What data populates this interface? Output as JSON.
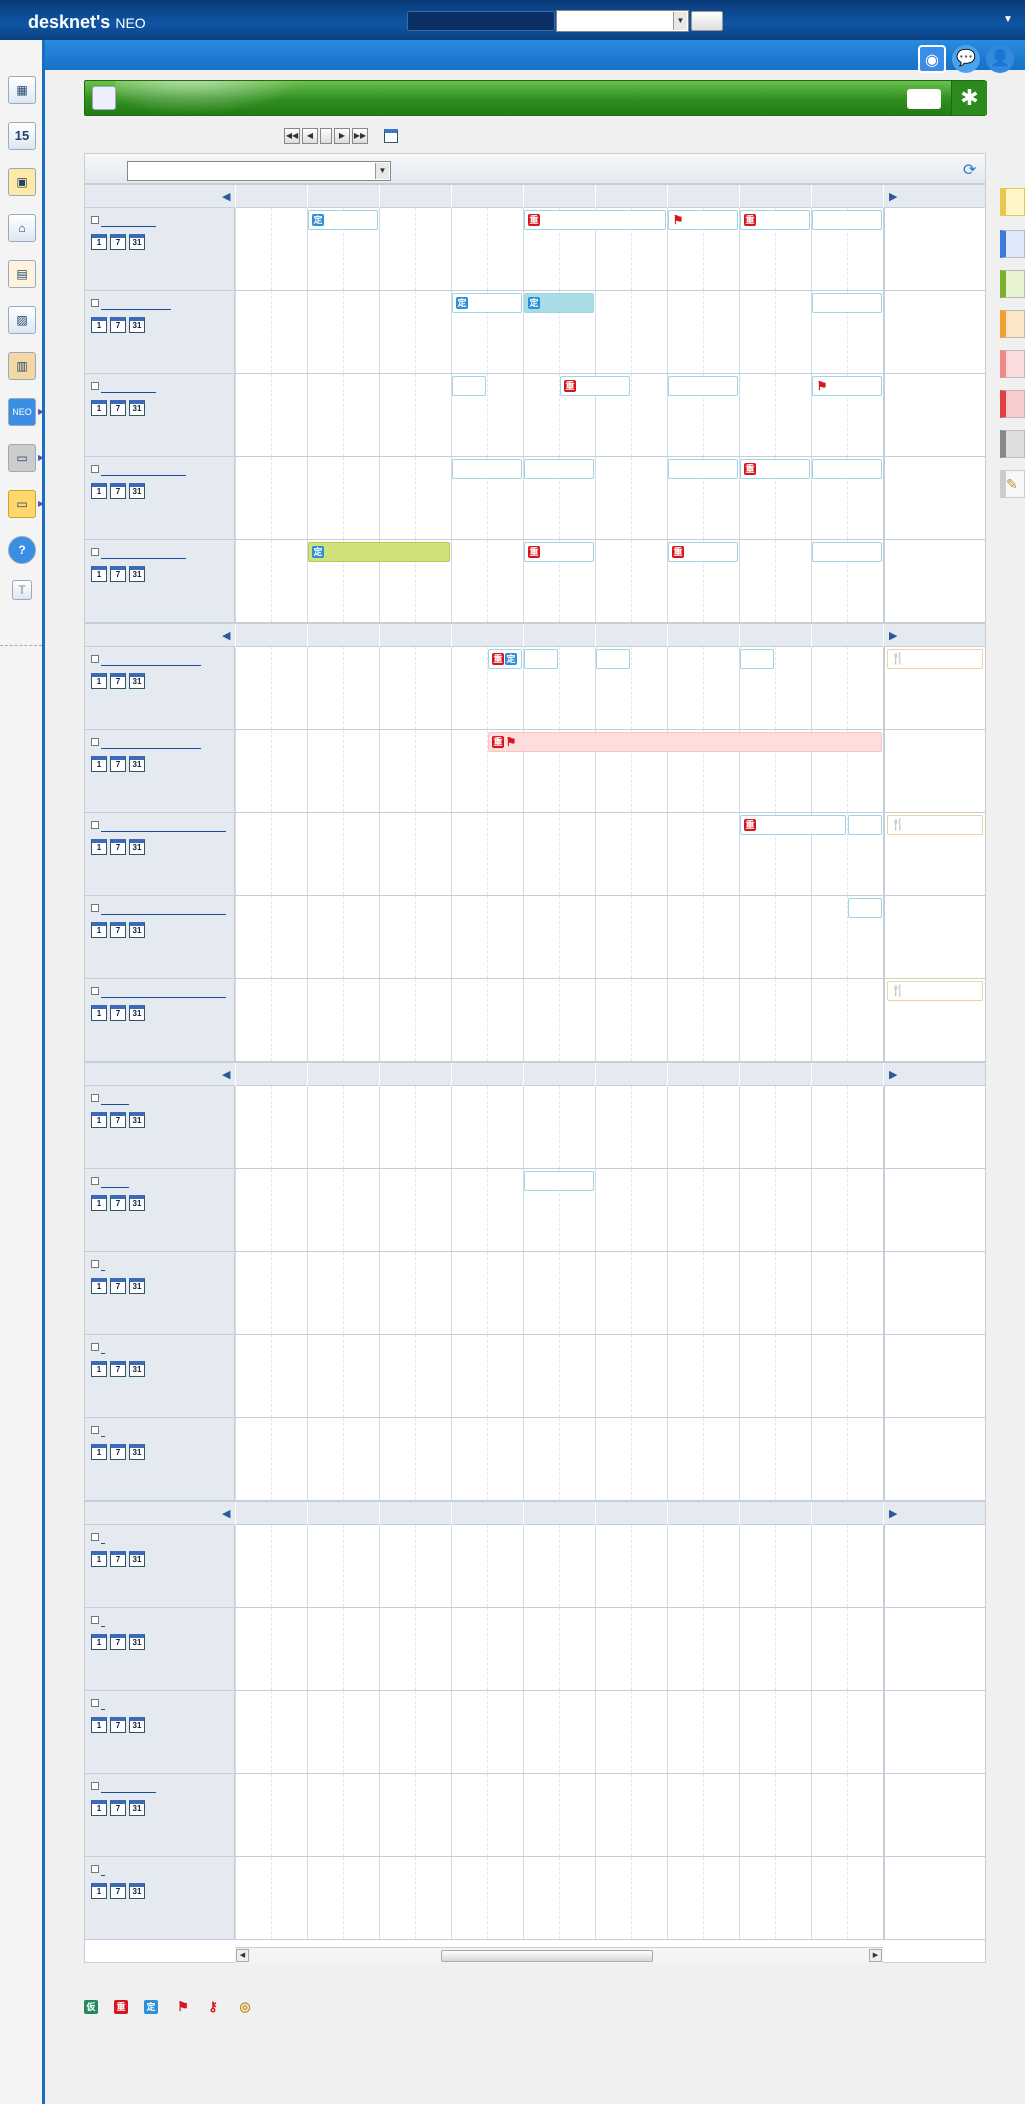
{
  "app": {
    "logo_main": "desknet's",
    "logo_sub": "NEO"
  },
  "topbar": {
    "menu_arrow": "▼"
  },
  "icons": {
    "topbar": [
      "broadcast-icon",
      "chat-bubble-icon",
      "user-icon"
    ],
    "sidebar": [
      "portal-icon",
      "calendar-icon",
      "contacts-icon",
      "facility-icon",
      "notepad-icon",
      "board-icon",
      "binder-icon",
      "neo-app-icon",
      "folder-dark-icon",
      "folder-icon",
      "help-icon",
      "text-icon"
    ],
    "legend": [
      "tentative-icon",
      "important-icon",
      "fixed-icon",
      "flag-icon",
      "key-icon",
      "facility-circle-icon"
    ]
  },
  "sidebar": {
    "calendar_day": "15",
    "help": "?",
    "text": "T"
  },
  "mini_icons": [
    "1",
    "7",
    "31"
  ],
  "portlet": {
    "settings_glyph": "✱"
  },
  "nav": {
    "first": "◀◀",
    "prev": "◀",
    "now": "",
    "next": "▶",
    "last": "▶▶"
  },
  "event_glyphs": {
    "fixed": "定",
    "important": "重",
    "flag": "⚑",
    "fork": "🍴",
    "tentative": "仮",
    "key": "⚷",
    "circle": "◎"
  },
  "colors": {
    "accent_blue": "#1670c8",
    "portlet_green": "#2f8e1e",
    "event_border": "#9fd6e4",
    "fixed_blue": "#2d8fd8",
    "important_red": "#d4161e",
    "green_event": "#cfe17a",
    "pink_event": "#ffdddd"
  }
}
